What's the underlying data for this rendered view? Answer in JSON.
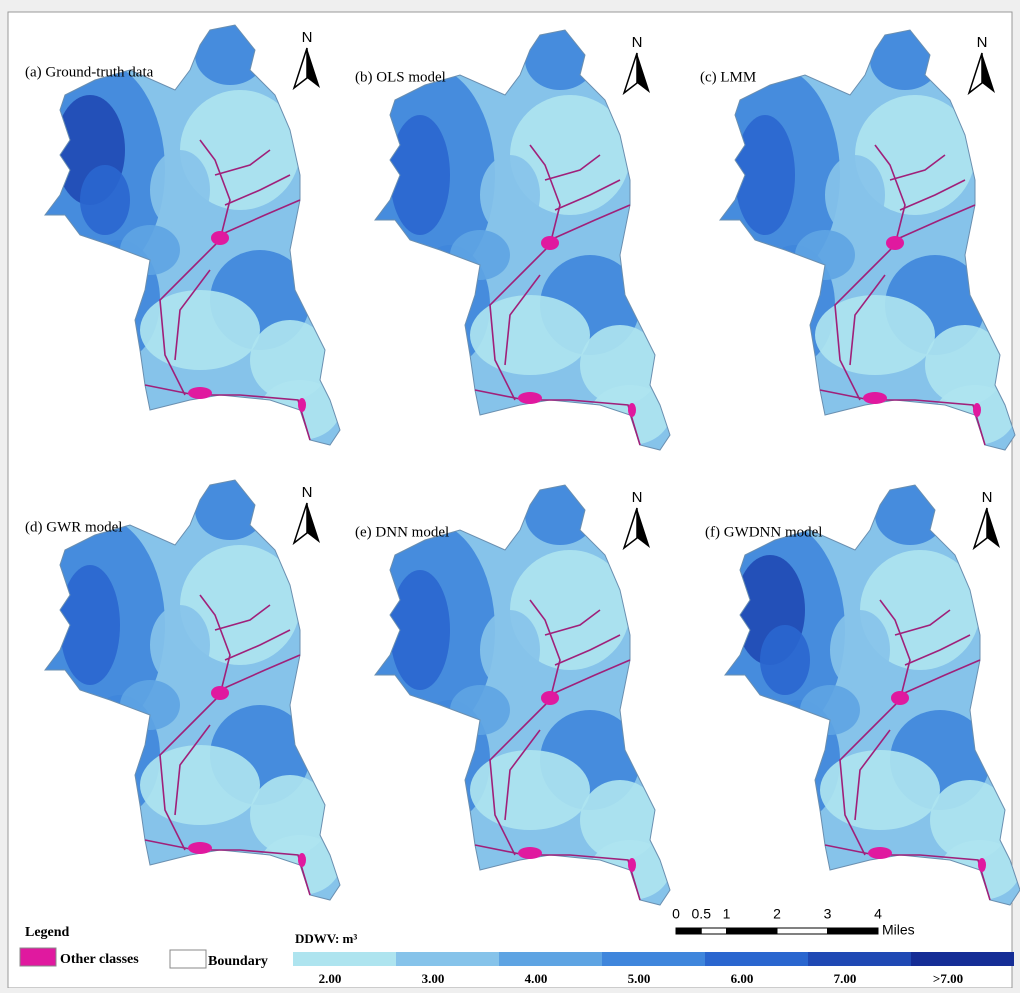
{
  "panels": [
    {
      "label": "(a)  Ground-truth data"
    },
    {
      "label": "(b)  OLS model"
    },
    {
      "label": "(c)  LMM"
    },
    {
      "label": "(d)  GWR model"
    },
    {
      "label": "(e)  DNN model"
    },
    {
      "label": "(f)  GWDNN model"
    }
  ],
  "north": "N",
  "legend": {
    "title": "Legend",
    "items": [
      {
        "label": "Other classes",
        "color": "#e0199f"
      },
      {
        "label": "Boundary",
        "color": "#ffffff"
      }
    ]
  },
  "scale_bar": {
    "ticks": [
      0,
      0.5,
      1,
      2,
      3,
      4
    ],
    "unit": "Miles"
  },
  "color_bar": {
    "title": "DDWV: m³",
    "labels": [
      "2.00",
      "3.00",
      "4.00",
      "5.00",
      "6.00",
      "7.00",
      ">7.00"
    ],
    "colors": [
      "#aee4ef",
      "#86c3ea",
      "#5ea4e3",
      "#3f86dc",
      "#2a66cf",
      "#1f49b4",
      "#152d96"
    ]
  }
}
